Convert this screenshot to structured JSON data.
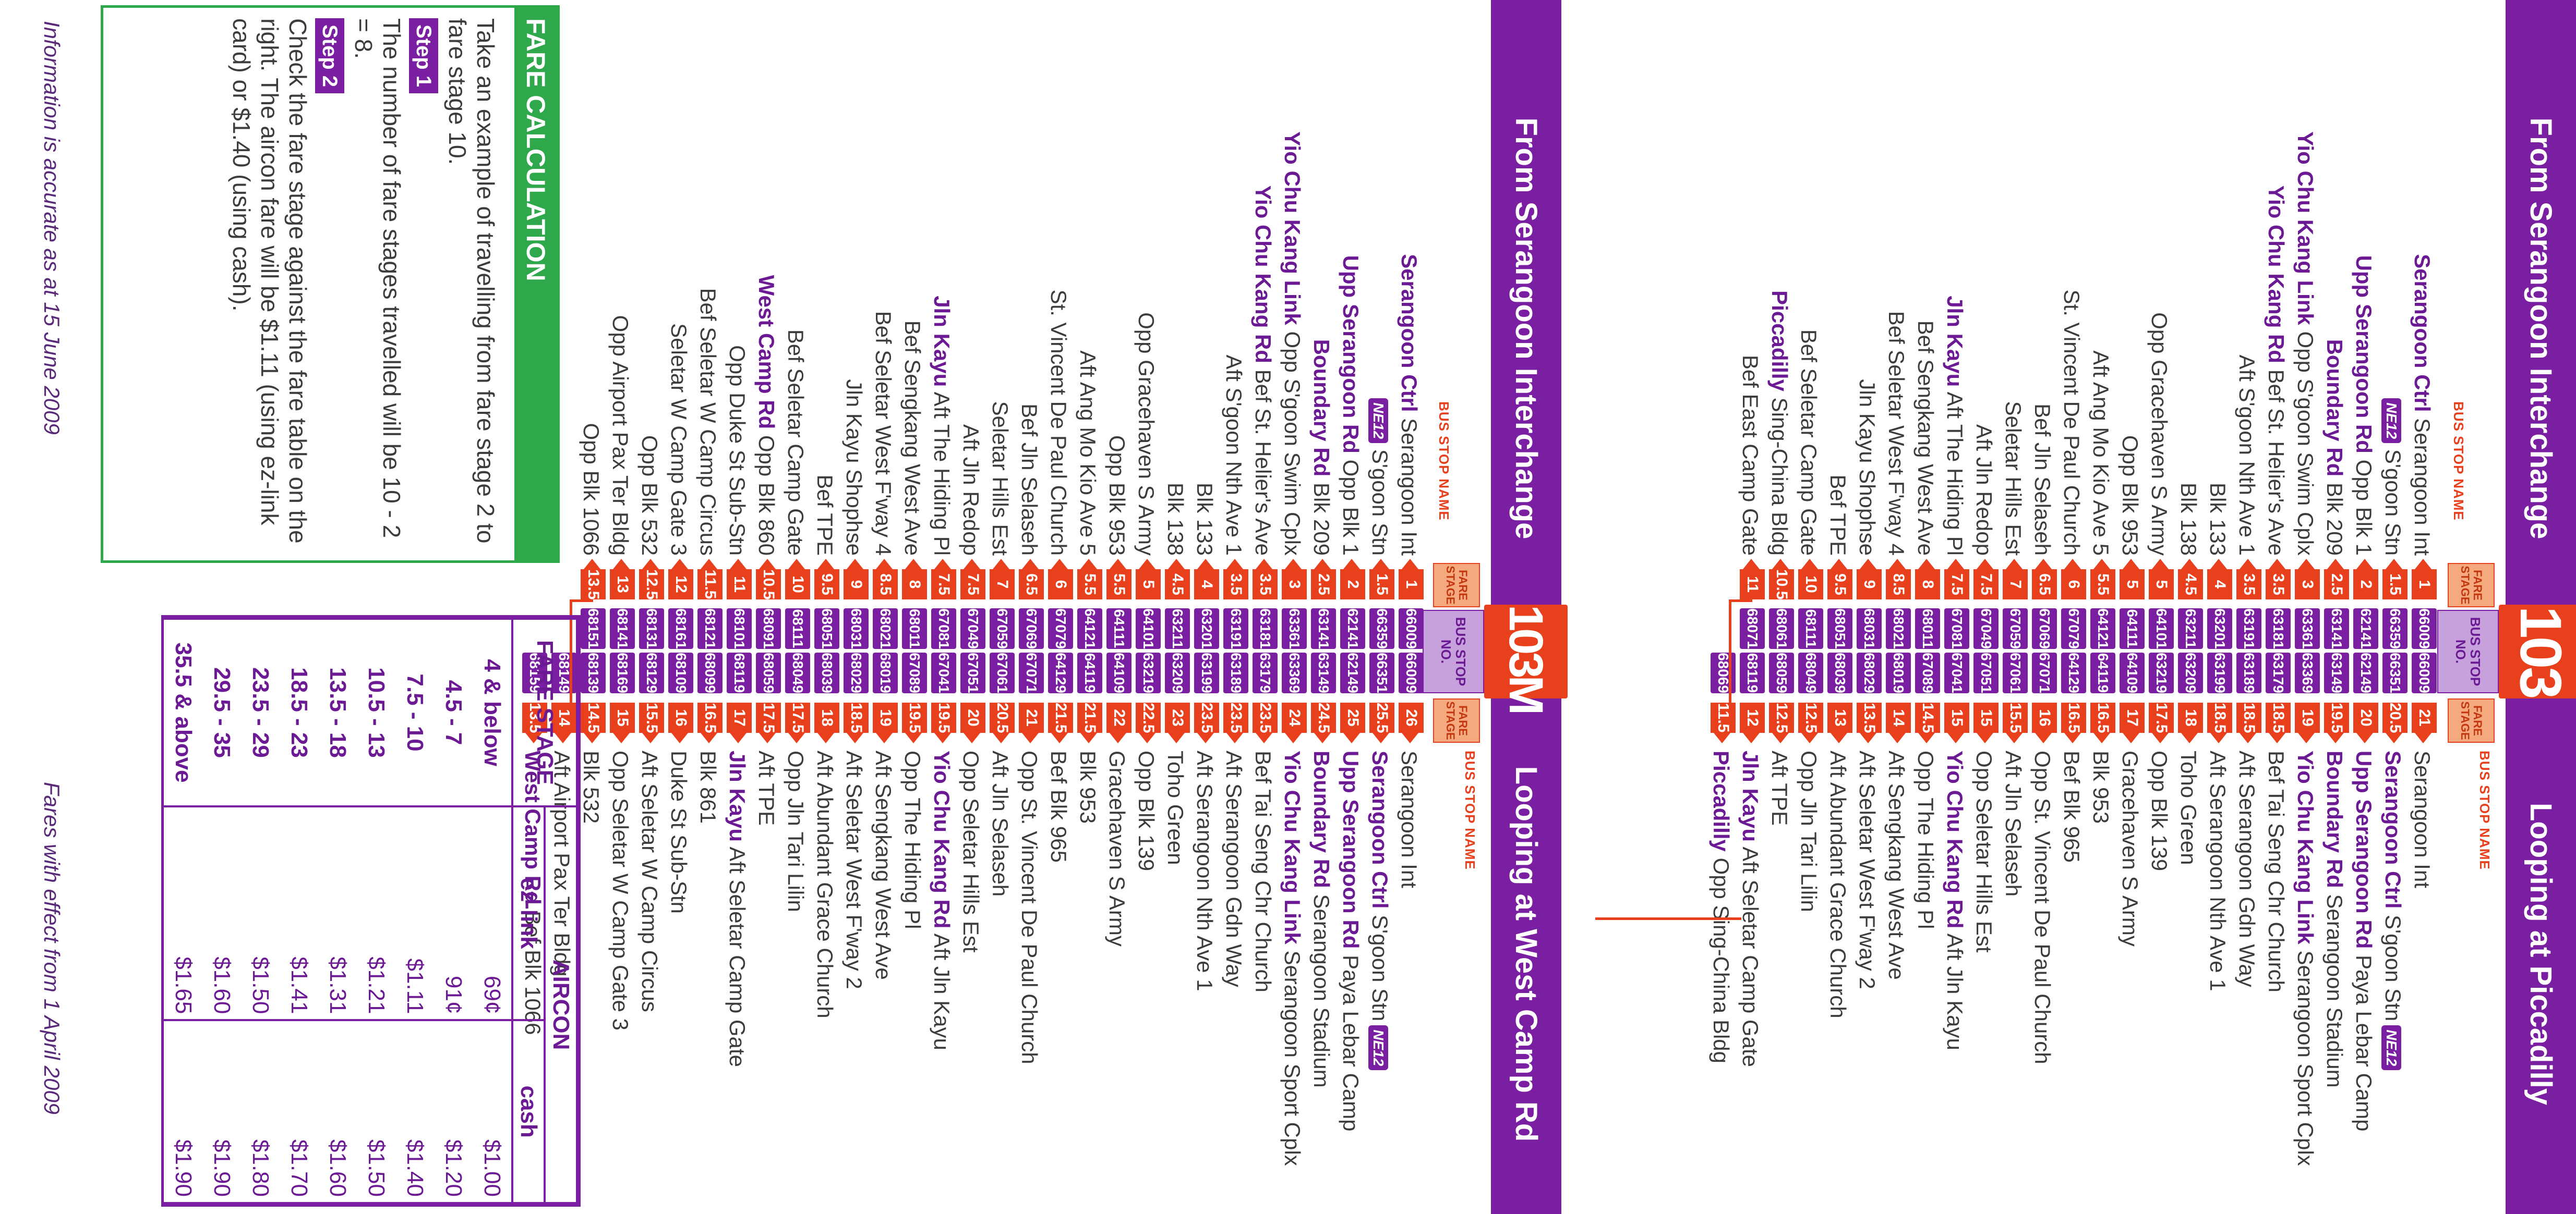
{
  "section_103": {
    "from_title": "From Serangoon Interchange",
    "route": "103",
    "loop_title": "Looping at Piccadilly",
    "bus_stop_name_label": "BUS STOP NAME",
    "fare_stage_label": "FARE STAGE",
    "bus_stop_no_label": "BUS STOP NO.",
    "left_rows": [
      {
        "bold": "Serangoon Ctrl",
        "name": "Serangoon Int",
        "stage": "1",
        "stop": "66009"
      },
      {
        "bold": "",
        "badge": "NE12",
        "name": "S'goon Stn",
        "stage": "1.5",
        "stop": "66359"
      },
      {
        "bold": "Upp Serangoon Rd",
        "name": "Opp Blk 1",
        "stage": "2",
        "stop": "62141"
      },
      {
        "bold": "Boundary Rd",
        "name": "Blk 209",
        "stage": "2.5",
        "stop": "63141"
      },
      {
        "bold": "Yio Chu Kang Link",
        "name": "Opp S'goon Swim Cplx",
        "stage": "3",
        "stop": "63361"
      },
      {
        "bold": "Yio Chu Kang Rd",
        "name": "Bef St. Helier's Ave",
        "stage": "3.5",
        "stop": "63181"
      },
      {
        "bold": "",
        "name": "Aft S'goon Nth Ave 1",
        "stage": "3.5",
        "stop": "63191"
      },
      {
        "bold": "",
        "name": "Blk 133",
        "stage": "4",
        "stop": "63201"
      },
      {
        "bold": "",
        "name": "Blk 138",
        "stage": "4.5",
        "stop": "63211"
      },
      {
        "bold": "",
        "name": "Opp Gracehaven S Army",
        "stage": "5",
        "stop": "64101"
      },
      {
        "bold": "",
        "name": "Opp Blk 953",
        "stage": "5",
        "stop": "64111"
      },
      {
        "bold": "",
        "name": "Aft Ang Mo Kio Ave 5",
        "stage": "5.5",
        "stop": "64121"
      },
      {
        "bold": "",
        "name": "St. Vincent De Paul Church",
        "stage": "6",
        "stop": "67079"
      },
      {
        "bold": "",
        "name": "Bef Jln Selaseh",
        "stage": "6.5",
        "stop": "67069"
      },
      {
        "bold": "",
        "name": "Seletar Hills Est",
        "stage": "7",
        "stop": "67059"
      },
      {
        "bold": "",
        "name": "Aft Jln Redop",
        "stage": "7.5",
        "stop": "67049"
      },
      {
        "bold": "Jln Kayu",
        "name": "Aft The Hiding Pl",
        "stage": "7.5",
        "stop": "67081"
      },
      {
        "bold": "",
        "name": "Bef Sengkang West Ave",
        "stage": "8",
        "stop": "68011"
      },
      {
        "bold": "",
        "name": "Bef Seletar West F'way 4",
        "stage": "8.5",
        "stop": "68021"
      },
      {
        "bold": "",
        "name": "Jln Kayu Shophse",
        "stage": "9",
        "stop": "68031"
      },
      {
        "bold": "",
        "name": "Bef TPE",
        "stage": "9.5",
        "stop": "68051"
      },
      {
        "bold": "",
        "name": "Bef Seletar Camp Gate",
        "stage": "10",
        "stop": "68111"
      },
      {
        "bold": "Piccadilly",
        "name": "Sing-China Bldg",
        "stage": "10.5",
        "stop": "68061"
      },
      {
        "bold": "",
        "name": "Bef East Camp Gate",
        "stage": "11",
        "stop": "68071"
      }
    ],
    "right_rows": [
      {
        "stop": "66009",
        "stage": "21",
        "bold": "",
        "name": "Serangoon Int"
      },
      {
        "stop": "66351",
        "stage": "20.5",
        "bold": "Serangoon Ctrl",
        "name": "S'goon Stn",
        "badge": "NE12"
      },
      {
        "stop": "62149",
        "stage": "20",
        "bold": "Upp Serangoon Rd",
        "name": "Paya Lebar Camp"
      },
      {
        "stop": "63149",
        "stage": "19.5",
        "bold": "Boundary Rd",
        "name": "Serangoon Stadium"
      },
      {
        "stop": "63369",
        "stage": "19",
        "bold": "Yio Chu Kang Link",
        "name": "Serangoon Sport Cplx"
      },
      {
        "stop": "63179",
        "stage": "18.5",
        "bold": "",
        "name": "Bef Tai Seng Chr Church"
      },
      {
        "stop": "63189",
        "stage": "18.5",
        "bold": "",
        "name": "Aft Serangoon Gdn Way"
      },
      {
        "stop": "63199",
        "stage": "18.5",
        "bold": "",
        "name": "Aft Serangoon Nth Ave 1"
      },
      {
        "stop": "63209",
        "stage": "18",
        "bold": "",
        "name": "Toho Green"
      },
      {
        "stop": "63219",
        "stage": "17.5",
        "bold": "",
        "name": "Opp Blk 139"
      },
      {
        "stop": "64109",
        "stage": "17",
        "bold": "",
        "name": "Gracehaven S Army"
      },
      {
        "stop": "64119",
        "stage": "16.5",
        "bold": "",
        "name": "Blk 953"
      },
      {
        "stop": "64129",
        "stage": "16.5",
        "bold": "",
        "name": "Bef Blk 965"
      },
      {
        "stop": "67071",
        "stage": "16",
        "bold": "",
        "name": "Opp St. Vincent De Paul Church"
      },
      {
        "stop": "67061",
        "stage": "15.5",
        "bold": "",
        "name": "Aft Jln Selaseh"
      },
      {
        "stop": "67051",
        "stage": "15",
        "bold": "",
        "name": "Opp Seletar Hills Est"
      },
      {
        "stop": "67041",
        "stage": "15",
        "bold": "Yio Chu Kang Rd",
        "name": "Aft Jln Kayu"
      },
      {
        "stop": "67089",
        "stage": "14.5",
        "bold": "",
        "name": "Opp The Hiding Pl"
      },
      {
        "stop": "68019",
        "stage": "14",
        "bold": "",
        "name": "Aft Sengkang West Ave"
      },
      {
        "stop": "68029",
        "stage": "13.5",
        "bold": "",
        "name": "Aft Seletar West F'way 2"
      },
      {
        "stop": "68039",
        "stage": "13",
        "bold": "",
        "name": "Aft Abundant Grace Church"
      },
      {
        "stop": "68049",
        "stage": "12.5",
        "bold": "",
        "name": "Opp Jln Tari Lilin"
      },
      {
        "stop": "68059",
        "stage": "12.5",
        "bold": "",
        "name": "Aft TPE"
      },
      {
        "stop": "68119",
        "stage": "12",
        "bold": "Jln Kayu",
        "name": "Aft Seletar Camp Gate"
      },
      {
        "stop": "68069",
        "stage": "11.5",
        "bold": "Piccadilly",
        "name": "Opp Sing-China Bldg"
      }
    ]
  },
  "section_103m": {
    "from_title": "From Serangoon Interchange",
    "route": "103M",
    "loop_title": "Looping at West Camp Rd",
    "bus_stop_name_label": "BUS STOP NAME",
    "fare_stage_label": "FARE STAGE",
    "bus_stop_no_label": "BUS STOP NO.",
    "left_rows": [
      {
        "bold": "Serangoon Ctrl",
        "name": "Serangoon Int",
        "stage": "1",
        "stop": "66009"
      },
      {
        "bold": "",
        "badge": "NE12",
        "name": "S'goon Stn",
        "stage": "1.5",
        "stop": "66359"
      },
      {
        "bold": "Upp Serangoon Rd",
        "name": "Opp Blk 1",
        "stage": "2",
        "stop": "62141"
      },
      {
        "bold": "Boundary Rd",
        "name": "Blk 209",
        "stage": "2.5",
        "stop": "63141"
      },
      {
        "bold": "Yio Chu Kang Link",
        "name": "Opp S'goon Swim Cplx",
        "stage": "3",
        "stop": "63361"
      },
      {
        "bold": "Yio Chu Kang Rd",
        "name": "Bef St. Helier's Ave",
        "stage": "3.5",
        "stop": "63181"
      },
      {
        "bold": "",
        "name": "Aft S'goon Nth Ave 1",
        "stage": "3.5",
        "stop": "63191"
      },
      {
        "bold": "",
        "name": "Blk 133",
        "stage": "4",
        "stop": "63201"
      },
      {
        "bold": "",
        "name": "Blk 138",
        "stage": "4.5",
        "stop": "63211"
      },
      {
        "bold": "",
        "name": "Opp Gracehaven S Army",
        "stage": "5",
        "stop": "64101"
      },
      {
        "bold": "",
        "name": "Opp Blk 953",
        "stage": "5.5",
        "stop": "64111"
      },
      {
        "bold": "",
        "name": "Aft Ang Mo Kio Ave 5",
        "stage": "5.5",
        "stop": "64121"
      },
      {
        "bold": "",
        "name": "St. Vincent De Paul Church",
        "stage": "6",
        "stop": "67079"
      },
      {
        "bold": "",
        "name": "Bef Jln Selaseh",
        "stage": "6.5",
        "stop": "67069"
      },
      {
        "bold": "",
        "name": "Seletar Hills Est",
        "stage": "7",
        "stop": "67059"
      },
      {
        "bold": "",
        "name": "Aft Jln Redop",
        "stage": "7.5",
        "stop": "67049"
      },
      {
        "bold": "Jln Kayu",
        "name": "Aft The Hiding Pl",
        "stage": "7.5",
        "stop": "67081"
      },
      {
        "bold": "",
        "name": "Bef Sengkang West Ave",
        "stage": "8",
        "stop": "68011"
      },
      {
        "bold": "",
        "name": "Bef Seletar West F'way 4",
        "stage": "8.5",
        "stop": "68021"
      },
      {
        "bold": "",
        "name": "Jln Kayu Shophse",
        "stage": "9",
        "stop": "68031"
      },
      {
        "bold": "",
        "name": "Bef TPE",
        "stage": "9.5",
        "stop": "68051"
      },
      {
        "bold": "",
        "name": "Bef Seletar Camp Gate",
        "stage": "10",
        "stop": "68111"
      },
      {
        "bold": "West Camp Rd",
        "name": "Opp Blk 860",
        "stage": "10.5",
        "stop": "68091"
      },
      {
        "bold": "",
        "name": "Opp Duke St Sub-Stn",
        "stage": "11",
        "stop": "68101"
      },
      {
        "bold": "",
        "name": "Bef Seletar W Camp Circus",
        "stage": "11.5",
        "stop": "68121"
      },
      {
        "bold": "",
        "name": "Seletar W Camp Gate 3",
        "stage": "12",
        "stop": "68161"
      },
      {
        "bold": "",
        "name": "Opp Blk 532",
        "stage": "12.5",
        "stop": "68131"
      },
      {
        "bold": "",
        "name": "Opp Airport Pax Ter Bldg",
        "stage": "13",
        "stop": "68141"
      },
      {
        "bold": "",
        "name": "Opp Blk 1066",
        "stage": "13.5",
        "stop": "68151"
      }
    ],
    "right_rows": [
      {
        "stop": "66009",
        "stage": "26",
        "bold": "",
        "name": "Serangoon Int"
      },
      {
        "stop": "66351",
        "stage": "25.5",
        "bold": "Serangoon Ctrl",
        "name": "S'goon Stn",
        "badge": "NE12"
      },
      {
        "stop": "62149",
        "stage": "25",
        "bold": "Upp Serangoon Rd",
        "name": "Paya Lebar Camp"
      },
      {
        "stop": "63149",
        "stage": "24.5",
        "bold": "Boundary Rd",
        "name": "Serangoon Stadium"
      },
      {
        "stop": "63369",
        "stage": "24",
        "bold": "Yio Chu Kang Link",
        "name": "Serangoon Sport Cplx"
      },
      {
        "stop": "63179",
        "stage": "23.5",
        "bold": "",
        "name": "Bef Tai Seng Chr Church"
      },
      {
        "stop": "63189",
        "stage": "23.5",
        "bold": "",
        "name": "Aft Serangoon Gdn Way"
      },
      {
        "stop": "63199",
        "stage": "23.5",
        "bold": "",
        "name": "Aft Serangoon Nth Ave 1"
      },
      {
        "stop": "63209",
        "stage": "23",
        "bold": "",
        "name": "Toho Green"
      },
      {
        "stop": "63219",
        "stage": "22.5",
        "bold": "",
        "name": "Opp Blk 139"
      },
      {
        "stop": "64109",
        "stage": "22",
        "bold": "",
        "name": "Gracehaven S Army"
      },
      {
        "stop": "64119",
        "stage": "21.5",
        "bold": "",
        "name": "Blk 953"
      },
      {
        "stop": "64129",
        "stage": "21.5",
        "bold": "",
        "name": "Bef Blk 965"
      },
      {
        "stop": "67071",
        "stage": "21",
        "bold": "",
        "name": "Opp St. Vincent De Paul Church"
      },
      {
        "stop": "67061",
        "stage": "20.5",
        "bold": "",
        "name": "Aft Jln Selaseh"
      },
      {
        "stop": "67051",
        "stage": "20",
        "bold": "",
        "name": "Opp Seletar Hills Est"
      },
      {
        "stop": "67041",
        "stage": "19.5",
        "bold": "Yio Chu Kang Rd",
        "name": "Aft Jln Kayu"
      },
      {
        "stop": "67089",
        "stage": "19.5",
        "bold": "",
        "name": "Opp The Hiding Pl"
      },
      {
        "stop": "68019",
        "stage": "19",
        "bold": "",
        "name": "Aft Sengkang West Ave"
      },
      {
        "stop": "68029",
        "stage": "18.5",
        "bold": "",
        "name": "Aft Seletar West F'way 2"
      },
      {
        "stop": "68039",
        "stage": "18",
        "bold": "",
        "name": "Aft Abundant Grace Church"
      },
      {
        "stop": "68049",
        "stage": "17.5",
        "bold": "",
        "name": "Opp Jln Tari Lilin"
      },
      {
        "stop": "68059",
        "stage": "17.5",
        "bold": "",
        "name": "Aft TPE"
      },
      {
        "stop": "68119",
        "stage": "17",
        "bold": "Jln Kayu",
        "name": "Aft Seletar Camp Gate"
      },
      {
        "stop": "68099",
        "stage": "16.5",
        "bold": "",
        "name": "Blk 861"
      },
      {
        "stop": "68109",
        "stage": "16",
        "bold": "",
        "name": "Duke St Sub-Stn"
      },
      {
        "stop": "68129",
        "stage": "15.5",
        "bold": "",
        "name": "Aft Seletar W Camp Circus"
      },
      {
        "stop": "68169",
        "stage": "15",
        "bold": "",
        "name": "Opp Seletar W Camp Gate 3"
      },
      {
        "stop": "68139",
        "stage": "14.5",
        "bold": "",
        "name": "Blk 532"
      },
      {
        "stop": "68149",
        "stage": "14",
        "bold": "",
        "name": "Aft Airport Pax Ter Bldg"
      },
      {
        "stop": "68159",
        "stage": "13.5",
        "bold": "West Camp Rd",
        "name": "Bef Blk 1066"
      }
    ]
  },
  "fare_calc": {
    "title": "FARE CALCULATION",
    "intro": "Take an example of travelling from fare stage 2 to fare stage 10.",
    "step1_label": "Step 1",
    "step1_text": "The number of fare stages travelled will be 10 - 2 = 8.",
    "step2_label": "Step 2",
    "step2_text": "Check the fare stage against the fare table on the right. The aircon fare will be $1.11 (using ez-link card) or $1.40 (using cash).",
    "accuracy_note": "Information is accurate as at 15 June 2009"
  },
  "fare_table": {
    "col_fare_stage": "FARE STAGE",
    "col_aircon": "AIRCON",
    "col_ezlink": "ez-link",
    "col_cash": "cash",
    "rows": [
      {
        "stage": "4 & below",
        "ez": "69¢",
        "cash": "$1.00"
      },
      {
        "stage": "4.5 - 7",
        "ez": "91¢",
        "cash": "$1.20"
      },
      {
        "stage": "7.5 - 10",
        "ez": "$1.11",
        "cash": "$1.40"
      },
      {
        "stage": "10.5 - 13",
        "ez": "$1.21",
        "cash": "$1.50"
      },
      {
        "stage": "13.5 - 18",
        "ez": "$1.31",
        "cash": "$1.60"
      },
      {
        "stage": "18.5 - 23",
        "ez": "$1.41",
        "cash": "$1.70"
      },
      {
        "stage": "23.5 - 29",
        "ez": "$1.50",
        "cash": "$1.80"
      },
      {
        "stage": "29.5 - 35",
        "ez": "$1.60",
        "cash": "$1.90"
      },
      {
        "stage": "35.5 & above",
        "ez": "$1.65",
        "cash": "$1.90"
      }
    ],
    "effect_note": "Fares with effect from 1 April 2009"
  }
}
